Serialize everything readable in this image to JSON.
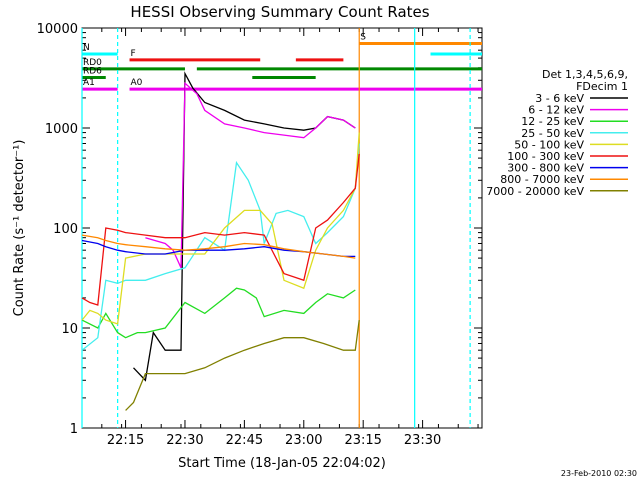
{
  "chart_data": {
    "type": "line",
    "title": "HESSI Observing Summary Count Rates",
    "xlabel": "Start Time (18-Jan-05 22:04:02)",
    "ylabel": "Count Rate (s⁻¹ detector⁻¹)",
    "y_scale": "log",
    "ylim": [
      1,
      10000
    ],
    "xlim": [
      "22:04",
      "23:45"
    ],
    "x_ticks": [
      "22:15",
      "22:30",
      "22:45",
      "23:00",
      "23:15",
      "23:30"
    ],
    "y_ticks": [
      "1",
      "10",
      "100",
      "1000",
      "10000"
    ],
    "footer": "23-Feb-2010 02:30",
    "legend": {
      "title_lines": [
        "Det 1,3,4,5,6,9,",
        "FDecim 1"
      ],
      "placement": "right"
    },
    "colors": {
      "3-6": "#000000",
      "6-12": "#ee00ee",
      "12-25": "#22dd22",
      "25-50": "#44eeee",
      "50-100": "#dddd22",
      "100-300": "#ee1111",
      "300-800": "#0000ee",
      "800-7000": "#ff8800",
      "7000-20000": "#808000",
      "flag_green": "#008800",
      "flag_cyan": "#00ffff"
    },
    "series": [
      {
        "name": "3 - 6 keV",
        "key": "3-6",
        "x": [
          "22:17",
          "22:20",
          "22:22",
          "22:25",
          "22:27",
          "22:29",
          "22:30",
          "22:32",
          "22:35",
          "22:40",
          "22:45",
          "22:50",
          "22:55",
          "23:00",
          "23:03",
          "23:06",
          "23:10",
          "23:13"
        ],
        "y": [
          4,
          3,
          9,
          6,
          6,
          6,
          3500,
          2500,
          1800,
          1500,
          1200,
          1100,
          1000,
          950,
          1000,
          1300,
          1200,
          1000
        ]
      },
      {
        "name": "6 - 12 keV",
        "key": "6-12",
        "x": [
          "22:20",
          "22:25",
          "22:27",
          "22:29",
          "22:30",
          "22:33",
          "22:35",
          "22:40",
          "22:45",
          "22:50",
          "22:55",
          "23:00",
          "23:03",
          "23:06",
          "23:10",
          "23:13"
        ],
        "y": [
          80,
          70,
          60,
          40,
          2800,
          2200,
          1500,
          1100,
          1000,
          900,
          850,
          800,
          1000,
          1300,
          1200,
          1000
        ]
      },
      {
        "name": "12 - 25 keV",
        "key": "12-25",
        "x": [
          "22:04",
          "22:08",
          "22:10",
          "22:13",
          "22:15",
          "22:18",
          "22:20",
          "22:25",
          "22:30",
          "22:35",
          "22:40",
          "22:43",
          "22:45",
          "22:48",
          "22:50",
          "22:55",
          "23:00",
          "23:03",
          "23:06",
          "23:10",
          "23:13"
        ],
        "y": [
          12,
          10,
          14,
          9,
          8,
          9,
          9,
          10,
          18,
          14,
          20,
          25,
          24,
          20,
          13,
          15,
          14,
          18,
          22,
          20,
          24
        ]
      },
      {
        "name": "25 - 50 keV",
        "key": "25-50",
        "x": [
          "22:04",
          "22:08",
          "22:10",
          "22:13",
          "22:15",
          "22:20",
          "22:25",
          "22:30",
          "22:35",
          "22:40",
          "22:43",
          "22:46",
          "22:49",
          "22:50",
          "22:53",
          "22:56",
          "23:00",
          "23:03",
          "23:06",
          "23:10",
          "23:13",
          "23:14"
        ],
        "y": [
          6,
          8,
          30,
          28,
          30,
          30,
          35,
          40,
          80,
          60,
          450,
          300,
          150,
          70,
          140,
          150,
          130,
          70,
          90,
          130,
          250,
          700
        ]
      },
      {
        "name": "50 - 100 keV",
        "key": "50-100",
        "x": [
          "22:04",
          "22:06",
          "22:08",
          "22:10",
          "22:13",
          "22:15",
          "22:20",
          "22:25",
          "22:30",
          "22:35",
          "22:40",
          "22:45",
          "22:49",
          "22:52",
          "22:55",
          "23:00",
          "23:03",
          "23:06",
          "23:10",
          "23:13",
          "23:14"
        ],
        "y": [
          12,
          15,
          14,
          12,
          11,
          50,
          55,
          55,
          55,
          55,
          100,
          150,
          150,
          110,
          30,
          25,
          60,
          100,
          150,
          250,
          900
        ]
      },
      {
        "name": "100 - 300 keV",
        "key": "100-300",
        "x": [
          "22:04",
          "22:06",
          "22:08",
          "22:10",
          "22:13",
          "22:15",
          "22:20",
          "22:25",
          "22:30",
          "22:35",
          "22:40",
          "22:45",
          "22:50",
          "22:55",
          "23:00",
          "23:03",
          "23:06",
          "23:10",
          "23:13",
          "23:14"
        ],
        "y": [
          20,
          18,
          17,
          100,
          95,
          90,
          85,
          80,
          80,
          90,
          85,
          90,
          85,
          35,
          30,
          100,
          120,
          180,
          250,
          550
        ]
      },
      {
        "name": "300 - 800 keV",
        "key": "300-800",
        "x": [
          "22:04",
          "22:08",
          "22:10",
          "22:13",
          "22:15",
          "22:20",
          "22:25",
          "22:30",
          "22:35",
          "22:40",
          "22:45",
          "22:50",
          "22:55",
          "23:00",
          "23:05",
          "23:10",
          "23:13"
        ],
        "y": [
          75,
          70,
          65,
          60,
          58,
          55,
          55,
          60,
          60,
          60,
          62,
          65,
          60,
          58,
          55,
          52,
          52
        ]
      },
      {
        "name": "800 - 7000 keV",
        "key": "800-7000",
        "x": [
          "22:04",
          "22:08",
          "22:10",
          "22:13",
          "22:15",
          "22:20",
          "22:25",
          "22:30",
          "22:35",
          "22:40",
          "22:45",
          "22:50",
          "22:55",
          "23:00",
          "23:05",
          "23:10",
          "23:13"
        ],
        "y": [
          85,
          80,
          75,
          70,
          68,
          65,
          62,
          60,
          62,
          65,
          70,
          68,
          62,
          58,
          55,
          52,
          50
        ]
      },
      {
        "name": "7000 - 20000 keV",
        "key": "7000-20000",
        "x": [
          "22:15",
          "22:17",
          "22:20",
          "22:25",
          "22:30",
          "22:35",
          "22:40",
          "22:45",
          "22:50",
          "22:55",
          "23:00",
          "23:05",
          "23:10",
          "23:13",
          "23:14"
        ],
        "y": [
          1.5,
          1.8,
          3.5,
          3.5,
          3.5,
          4,
          5,
          6,
          7,
          8,
          8,
          7,
          6,
          6,
          12
        ]
      }
    ],
    "flag_bars": [
      {
        "label": "N",
        "key": "flag_cyan",
        "y": 5500,
        "x_start": "22:04",
        "x_end": "22:13"
      },
      {
        "label": "",
        "key": "flag_cyan",
        "y": 5500,
        "x_start": "23:32",
        "x_end": "23:45"
      },
      {
        "label": "F",
        "key": "100-300",
        "y": 4800,
        "x_start": "22:16",
        "x_end": "22:49"
      },
      {
        "label": "",
        "key": "100-300",
        "y": 4800,
        "x_start": "22:58",
        "x_end": "23:10"
      },
      {
        "label": "S",
        "key": "800-7000",
        "y": 7000,
        "x_start": "23:14",
        "x_end": "23:45"
      },
      {
        "label": "RD0",
        "key": "flag_green",
        "y": 3900,
        "x_start": "22:04",
        "x_end": "22:30"
      },
      {
        "label": "",
        "key": "flag_green",
        "y": 3900,
        "x_start": "22:33",
        "x_end": "23:45"
      },
      {
        "label": "RD6",
        "key": "flag_green",
        "y": 3200,
        "x_start": "22:04",
        "x_end": "22:10"
      },
      {
        "label": "",
        "key": "flag_green",
        "y": 3200,
        "x_start": "22:47",
        "x_end": "23:03"
      },
      {
        "label": "A1",
        "key": "6-12",
        "y": 2450,
        "x_start": "22:04",
        "x_end": "22:13"
      },
      {
        "label": "A0",
        "key": "6-12",
        "y": 2450,
        "x_start": "22:16",
        "x_end": "23:45"
      }
    ],
    "vertical_markers": [
      {
        "x": "22:04",
        "key": "flag_cyan",
        "style": "solid"
      },
      {
        "x": "22:13",
        "key": "flag_cyan",
        "style": "dashed"
      },
      {
        "x": "23:14",
        "key": "800-7000",
        "style": "solid"
      },
      {
        "x": "23:28",
        "key": "flag_cyan",
        "style": "solid"
      },
      {
        "x": "23:42",
        "key": "flag_cyan",
        "style": "dashed"
      }
    ]
  }
}
